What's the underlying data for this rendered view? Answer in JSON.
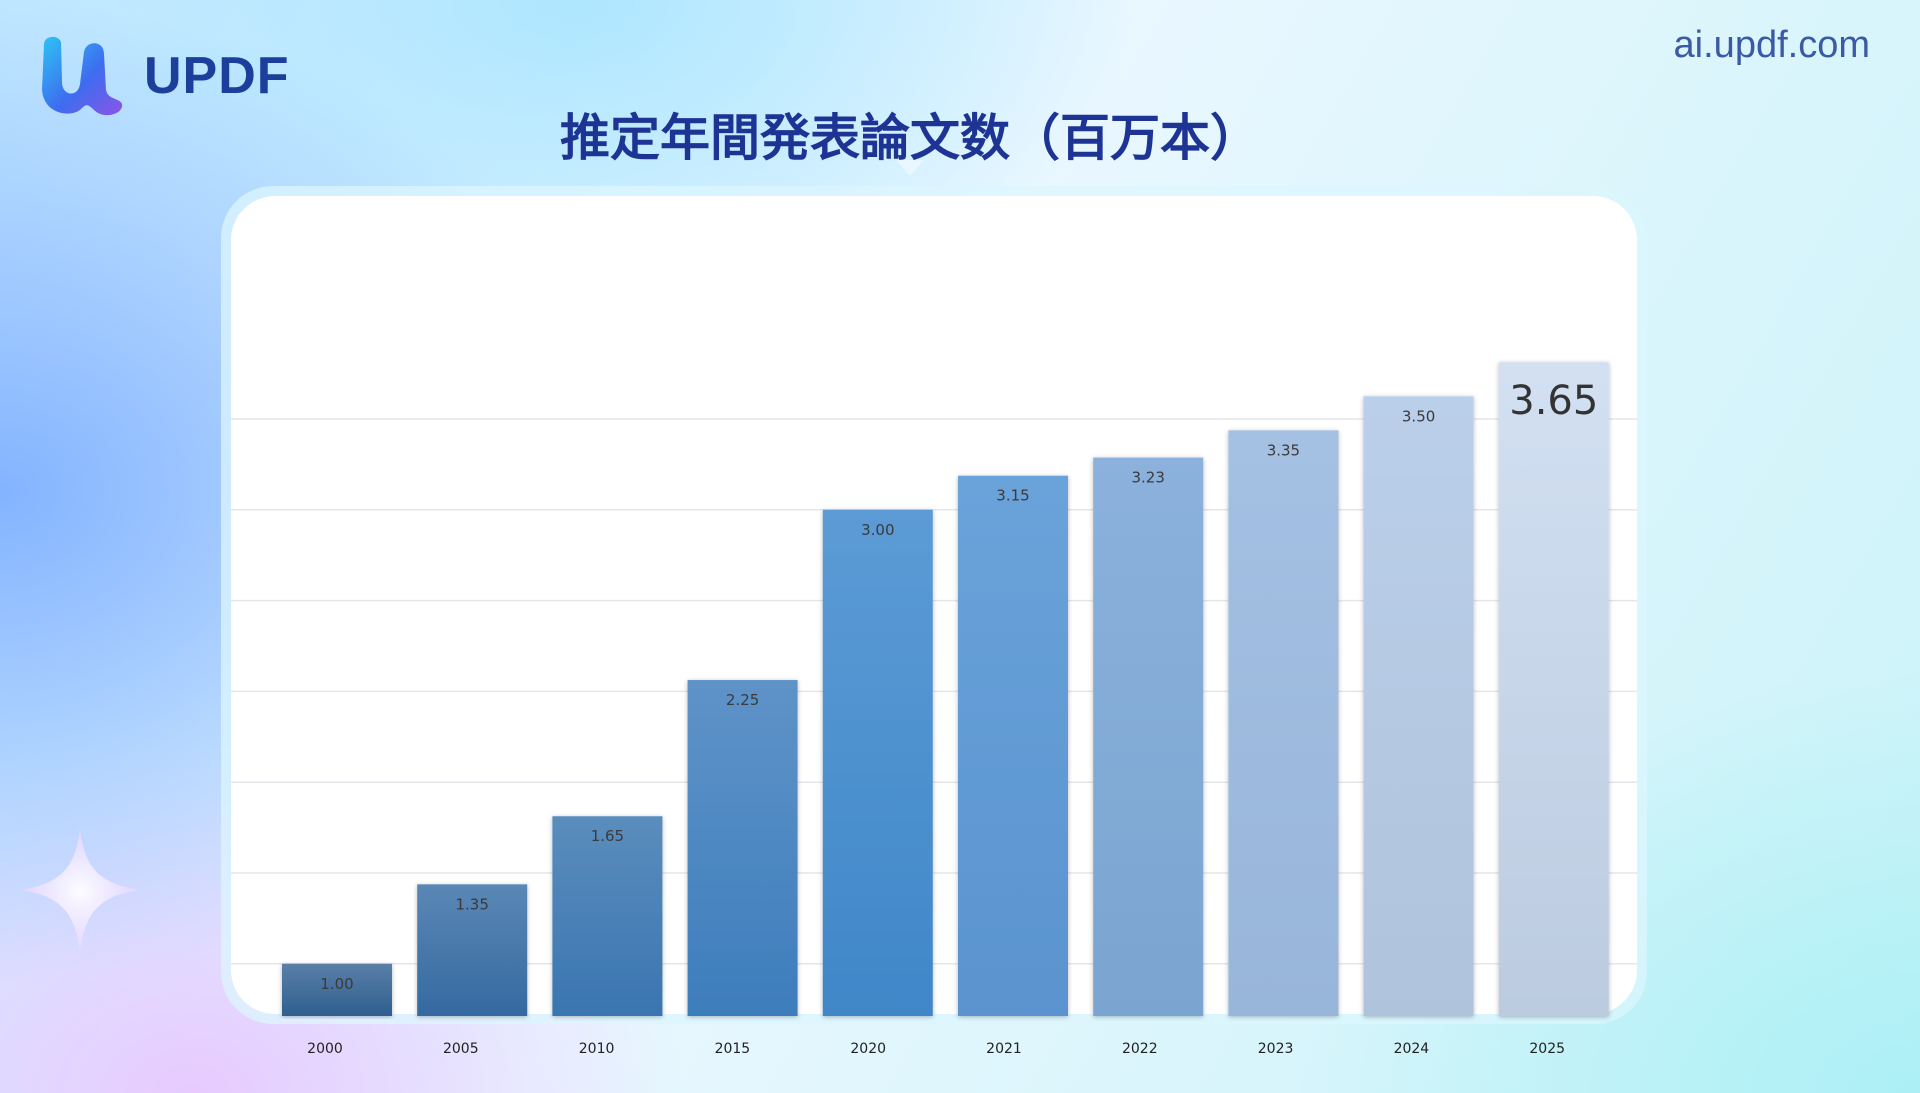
{
  "brand": {
    "name": "UPDF",
    "site": "ai.updf.com",
    "logo_icon": "updf-logo-icon",
    "sparkle_icon": "sparkle-icon"
  },
  "colors": {
    "brand": "#1d3f9c",
    "title": "#1d3494",
    "bar_dark": "#2e5f8f",
    "bar_light": "#d6e2f2"
  },
  "chart_data": {
    "type": "bar",
    "title": "推定年間発表論文数（百万本）",
    "categories": [
      "2000",
      "2005",
      "2010",
      "2015",
      "2020",
      "2021",
      "2022",
      "2023",
      "2024",
      "2025"
    ],
    "values": [
      1.0,
      1.35,
      1.65,
      2.25,
      3.0,
      3.15,
      3.23,
      3.35,
      3.5,
      3.65
    ],
    "value_labels": [
      "1.00",
      "1.35",
      "1.65",
      "2.25",
      "3.00",
      "3.15",
      "3.23",
      "3.35",
      "3.50",
      "3.65"
    ],
    "highlight_last_label": true,
    "xlabel": "",
    "ylabel": "",
    "ylim": [
      0.5,
      4.0
    ],
    "grid": true,
    "legend": "none"
  }
}
